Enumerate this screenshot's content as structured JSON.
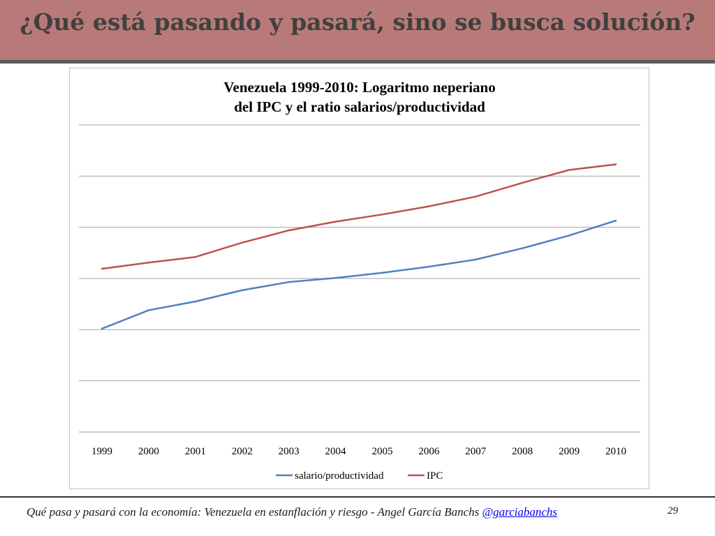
{
  "slide": {
    "title": "¿Qué está pasando y pasará, sino se busca solución?",
    "footer_text": "Qué pasa y pasará con la economía: Venezuela en estanflación y riesgo - Angel García Banchs",
    "footer_link": "@garciabanchs",
    "page_number": "29"
  },
  "colors": {
    "header_bg": "#b87a78",
    "series_salario": "#4f81bd",
    "series_ipc": "#c0504d"
  },
  "chart_data": {
    "type": "line",
    "title_lines": [
      "Venezuela 1999-2010: Logaritmo neperiano",
      "del IPC y el ratio salarios/productividad"
    ],
    "categories": [
      "1999",
      "2000",
      "2001",
      "2002",
      "2003",
      "2004",
      "2005",
      "2006",
      "2007",
      "2008",
      "2009",
      "2010"
    ],
    "y_axis_labels_shown": false,
    "ylim": [
      0,
      6
    ],
    "grid": true,
    "legend_position": "bottom",
    "series": [
      {
        "name": "salario/productividad",
        "color": "#4f81bd",
        "values": [
          2.02,
          2.38,
          2.55,
          2.77,
          2.93,
          3.01,
          3.11,
          3.23,
          3.37,
          3.59,
          3.84,
          4.13
        ]
      },
      {
        "name": "IPC",
        "color": "#c0504d",
        "values": [
          3.19,
          3.31,
          3.42,
          3.7,
          3.94,
          4.11,
          4.25,
          4.41,
          4.6,
          4.87,
          5.12,
          5.23
        ]
      }
    ]
  }
}
